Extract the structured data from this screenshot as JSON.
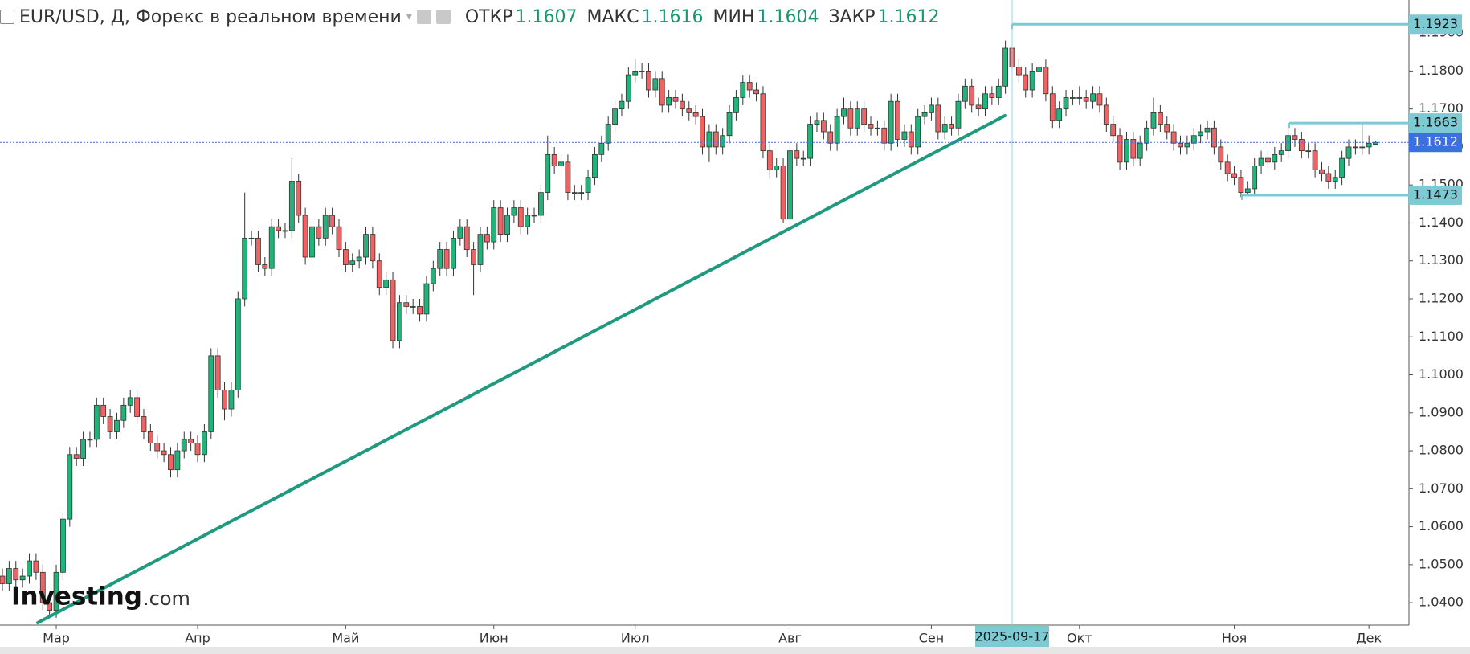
{
  "chart_data": {
    "type": "candlestick",
    "title": "EUR/USD, Д, Форекс в реальном времени",
    "header_values": [
      {
        "label": "ОТКР",
        "value": 1.1607
      },
      {
        "label": "МАКС",
        "value": 1.1616
      },
      {
        "label": "МИН",
        "value": 1.1604
      },
      {
        "label": "ЗАКР",
        "value": 1.1612
      }
    ],
    "logo": "Investing",
    "logo_suffix": ".com",
    "up_color": "#22b37a",
    "down_color": "#ee6363",
    "level_color": "#7ccbd4",
    "last_price_color": "#3c6fe0",
    "ylim": [
      1.0341,
      1.1987
    ],
    "yticks": [
      {
        "value": 1.04,
        "label": "1.0400"
      },
      {
        "value": 1.05,
        "label": "1.0500"
      },
      {
        "value": 1.06,
        "label": "1.0600"
      },
      {
        "value": 1.07,
        "label": "1.0700"
      },
      {
        "value": 1.08,
        "label": "1.0800"
      },
      {
        "value": 1.09,
        "label": "1.0900"
      },
      {
        "value": 1.1,
        "label": "1.1000"
      },
      {
        "value": 1.11,
        "label": "1.1100"
      },
      {
        "value": 1.12,
        "label": "1.1200"
      },
      {
        "value": 1.13,
        "label": "1.1300"
      },
      {
        "value": 1.14,
        "label": "1.1400"
      },
      {
        "value": 1.15,
        "label": "1.1500"
      },
      {
        "value": 1.16,
        "label": "1.1600"
      },
      {
        "value": 1.17,
        "label": "1.1700"
      },
      {
        "value": 1.18,
        "label": "1.1800"
      },
      {
        "value": 1.19,
        "label": "1.1900"
      }
    ],
    "price_levels": [
      1.1923,
      1.1663,
      1.1473
    ],
    "last_price": 1.1612,
    "categories": [
      null,
      null,
      null,
      null,
      null,
      null,
      null,
      null,
      "Мар",
      null,
      null,
      null,
      null,
      null,
      null,
      null,
      null,
      null,
      null,
      null,
      null,
      null,
      null,
      null,
      null,
      null,
      null,
      null,
      null,
      "Апр",
      null,
      null,
      null,
      null,
      null,
      null,
      null,
      null,
      null,
      null,
      null,
      null,
      null,
      null,
      null,
      null,
      null,
      null,
      null,
      null,
      null,
      "Май",
      null,
      null,
      null,
      null,
      null,
      null,
      null,
      null,
      null,
      null,
      null,
      null,
      null,
      null,
      null,
      null,
      null,
      null,
      null,
      null,
      null,
      "Июн",
      null,
      null,
      null,
      null,
      null,
      null,
      null,
      null,
      null,
      null,
      null,
      null,
      null,
      null,
      null,
      null,
      null,
      null,
      null,
      null,
      "Июл",
      null,
      null,
      null,
      null,
      null,
      null,
      null,
      null,
      null,
      null,
      null,
      null,
      null,
      null,
      null,
      null,
      null,
      null,
      null,
      null,
      null,
      null,
      "Авг",
      null,
      null,
      null,
      null,
      null,
      null,
      null,
      null,
      null,
      null,
      null,
      null,
      null,
      null,
      null,
      null,
      null,
      null,
      null,
      null,
      "Сен",
      null,
      null,
      null,
      null,
      null,
      null,
      null,
      null,
      null,
      null,
      null,
      "2025-09-17",
      null,
      null,
      null,
      null,
      null,
      null,
      null,
      null,
      null,
      "Окт",
      null,
      null,
      null,
      null,
      null,
      null,
      null,
      null,
      null,
      null,
      null,
      null,
      null,
      null,
      null,
      null,
      null,
      null,
      null,
      null,
      null,
      null,
      "Ноя",
      null,
      null,
      null,
      null,
      null,
      null,
      null,
      null,
      null,
      null,
      null,
      null,
      null,
      null,
      null,
      null,
      null,
      null,
      null,
      "Дек",
      null
    ],
    "candles": [
      [
        1.047,
        1.049,
        1.043,
        1.045
      ],
      [
        1.045,
        1.051,
        1.043,
        1.049
      ],
      [
        1.049,
        1.051,
        1.044,
        1.046
      ],
      [
        1.046,
        1.049,
        1.044,
        1.047
      ],
      [
        1.047,
        1.053,
        1.045,
        1.051
      ],
      [
        1.051,
        1.053,
        1.046,
        1.048
      ],
      [
        1.048,
        1.05,
        1.038,
        1.04
      ],
      [
        1.04,
        1.042,
        1.036,
        1.038
      ],
      [
        1.038,
        1.05,
        1.036,
        1.048
      ],
      [
        1.048,
        1.064,
        1.046,
        1.062
      ],
      [
        1.062,
        1.081,
        1.06,
        1.079
      ],
      [
        1.079,
        1.081,
        1.076,
        1.078
      ],
      [
        1.078,
        1.085,
        1.076,
        1.083
      ],
      [
        1.083,
        1.085,
        1.081,
        1.083
      ],
      [
        1.083,
        1.094,
        1.081,
        1.092
      ],
      [
        1.092,
        1.094,
        1.087,
        1.089
      ],
      [
        1.089,
        1.091,
        1.083,
        1.085
      ],
      [
        1.085,
        1.09,
        1.083,
        1.088
      ],
      [
        1.088,
        1.094,
        1.086,
        1.092
      ],
      [
        1.092,
        1.096,
        1.09,
        1.094
      ],
      [
        1.094,
        1.096,
        1.087,
        1.089
      ],
      [
        1.089,
        1.091,
        1.083,
        1.085
      ],
      [
        1.085,
        1.087,
        1.08,
        1.082
      ],
      [
        1.082,
        1.084,
        1.078,
        1.08
      ],
      [
        1.08,
        1.082,
        1.077,
        1.079
      ],
      [
        1.079,
        1.081,
        1.073,
        1.075
      ],
      [
        1.075,
        1.082,
        1.073,
        1.08
      ],
      [
        1.08,
        1.085,
        1.078,
        1.083
      ],
      [
        1.083,
        1.085,
        1.08,
        1.082
      ],
      [
        1.082,
        1.084,
        1.077,
        1.079
      ],
      [
        1.079,
        1.087,
        1.077,
        1.085
      ],
      [
        1.085,
        1.107,
        1.083,
        1.105
      ],
      [
        1.105,
        1.107,
        1.094,
        1.096
      ],
      [
        1.096,
        1.098,
        1.088,
        1.091
      ],
      [
        1.091,
        1.098,
        1.089,
        1.096
      ],
      [
        1.096,
        1.122,
        1.094,
        1.12
      ],
      [
        1.12,
        1.148,
        1.118,
        1.136
      ],
      [
        1.136,
        1.138,
        1.134,
        1.136
      ],
      [
        1.136,
        1.138,
        1.127,
        1.129
      ],
      [
        1.129,
        1.131,
        1.126,
        1.128
      ],
      [
        1.128,
        1.141,
        1.126,
        1.139
      ],
      [
        1.139,
        1.141,
        1.136,
        1.138
      ],
      [
        1.138,
        1.14,
        1.136,
        1.138
      ],
      [
        1.138,
        1.157,
        1.136,
        1.151
      ],
      [
        1.151,
        1.153,
        1.14,
        1.142
      ],
      [
        1.142,
        1.144,
        1.129,
        1.131
      ],
      [
        1.131,
        1.141,
        1.129,
        1.139
      ],
      [
        1.139,
        1.141,
        1.134,
        1.136
      ],
      [
        1.136,
        1.144,
        1.134,
        1.142
      ],
      [
        1.142,
        1.144,
        1.137,
        1.139
      ],
      [
        1.139,
        1.141,
        1.131,
        1.133
      ],
      [
        1.133,
        1.135,
        1.127,
        1.129
      ],
      [
        1.129,
        1.132,
        1.127,
        1.13
      ],
      [
        1.13,
        1.133,
        1.128,
        1.131
      ],
      [
        1.131,
        1.139,
        1.129,
        1.137
      ],
      [
        1.137,
        1.139,
        1.128,
        1.13
      ],
      [
        1.13,
        1.132,
        1.121,
        1.123
      ],
      [
        1.123,
        1.127,
        1.121,
        1.125
      ],
      [
        1.125,
        1.127,
        1.107,
        1.109
      ],
      [
        1.109,
        1.121,
        1.107,
        1.119
      ],
      [
        1.119,
        1.121,
        1.116,
        1.118
      ],
      [
        1.118,
        1.12,
        1.116,
        1.118
      ],
      [
        1.118,
        1.12,
        1.114,
        1.116
      ],
      [
        1.116,
        1.126,
        1.114,
        1.124
      ],
      [
        1.124,
        1.13,
        1.122,
        1.128
      ],
      [
        1.128,
        1.135,
        1.126,
        1.133
      ],
      [
        1.133,
        1.135,
        1.126,
        1.128
      ],
      [
        1.128,
        1.138,
        1.126,
        1.136
      ],
      [
        1.136,
        1.141,
        1.134,
        1.139
      ],
      [
        1.139,
        1.141,
        1.131,
        1.133
      ],
      [
        1.133,
        1.135,
        1.121,
        1.129
      ],
      [
        1.129,
        1.139,
        1.127,
        1.137
      ],
      [
        1.137,
        1.139,
        1.133,
        1.135
      ],
      [
        1.135,
        1.146,
        1.133,
        1.144
      ],
      [
        1.144,
        1.146,
        1.135,
        1.137
      ],
      [
        1.137,
        1.144,
        1.135,
        1.142
      ],
      [
        1.142,
        1.146,
        1.14,
        1.144
      ],
      [
        1.144,
        1.146,
        1.137,
        1.139
      ],
      [
        1.139,
        1.144,
        1.137,
        1.142
      ],
      [
        1.142,
        1.144,
        1.14,
        1.142
      ],
      [
        1.142,
        1.15,
        1.14,
        1.148
      ],
      [
        1.148,
        1.163,
        1.146,
        1.158
      ],
      [
        1.158,
        1.16,
        1.153,
        1.155
      ],
      [
        1.155,
        1.158,
        1.153,
        1.156
      ],
      [
        1.156,
        1.158,
        1.146,
        1.148
      ],
      [
        1.148,
        1.15,
        1.146,
        1.148
      ],
      [
        1.148,
        1.15,
        1.146,
        1.148
      ],
      [
        1.148,
        1.154,
        1.146,
        1.152
      ],
      [
        1.152,
        1.16,
        1.15,
        1.158
      ],
      [
        1.158,
        1.163,
        1.156,
        1.161
      ],
      [
        1.161,
        1.168,
        1.159,
        1.166
      ],
      [
        1.166,
        1.172,
        1.164,
        1.17
      ],
      [
        1.17,
        1.174,
        1.168,
        1.172
      ],
      [
        1.172,
        1.181,
        1.17,
        1.179
      ],
      [
        1.179,
        1.183,
        1.177,
        1.18
      ],
      [
        1.18,
        1.182,
        1.178,
        1.18
      ],
      [
        1.18,
        1.182,
        1.173,
        1.175
      ],
      [
        1.175,
        1.18,
        1.173,
        1.178
      ],
      [
        1.178,
        1.18,
        1.169,
        1.171
      ],
      [
        1.171,
        1.175,
        1.169,
        1.173
      ],
      [
        1.173,
        1.175,
        1.17,
        1.172
      ],
      [
        1.172,
        1.174,
        1.168,
        1.17
      ],
      [
        1.17,
        1.172,
        1.167,
        1.169
      ],
      [
        1.169,
        1.171,
        1.166,
        1.168
      ],
      [
        1.168,
        1.17,
        1.158,
        1.16
      ],
      [
        1.16,
        1.166,
        1.156,
        1.164
      ],
      [
        1.164,
        1.166,
        1.158,
        1.16
      ],
      [
        1.16,
        1.165,
        1.158,
        1.163
      ],
      [
        1.163,
        1.171,
        1.161,
        1.169
      ],
      [
        1.169,
        1.175,
        1.167,
        1.173
      ],
      [
        1.173,
        1.179,
        1.171,
        1.177
      ],
      [
        1.177,
        1.179,
        1.173,
        1.175
      ],
      [
        1.175,
        1.177,
        1.172,
        1.174
      ],
      [
        1.174,
        1.176,
        1.157,
        1.159
      ],
      [
        1.159,
        1.161,
        1.152,
        1.154
      ],
      [
        1.154,
        1.157,
        1.152,
        1.155
      ],
      [
        1.155,
        1.157,
        1.14,
        1.141
      ],
      [
        1.141,
        1.161,
        1.139,
        1.159
      ],
      [
        1.159,
        1.161,
        1.155,
        1.157
      ],
      [
        1.157,
        1.159,
        1.155,
        1.157
      ],
      [
        1.157,
        1.168,
        1.155,
        1.166
      ],
      [
        1.166,
        1.169,
        1.164,
        1.167
      ],
      [
        1.167,
        1.169,
        1.162,
        1.164
      ],
      [
        1.164,
        1.166,
        1.159,
        1.161
      ],
      [
        1.161,
        1.17,
        1.159,
        1.168
      ],
      [
        1.168,
        1.173,
        1.166,
        1.17
      ],
      [
        1.17,
        1.172,
        1.163,
        1.165
      ],
      [
        1.165,
        1.172,
        1.163,
        1.17
      ],
      [
        1.17,
        1.172,
        1.164,
        1.166
      ],
      [
        1.166,
        1.168,
        1.163,
        1.165
      ],
      [
        1.165,
        1.167,
        1.163,
        1.165
      ],
      [
        1.165,
        1.167,
        1.159,
        1.161
      ],
      [
        1.161,
        1.174,
        1.159,
        1.172
      ],
      [
        1.172,
        1.174,
        1.16,
        1.162
      ],
      [
        1.162,
        1.166,
        1.16,
        1.164
      ],
      [
        1.164,
        1.166,
        1.158,
        1.16
      ],
      [
        1.16,
        1.17,
        1.158,
        1.168
      ],
      [
        1.168,
        1.171,
        1.166,
        1.169
      ],
      [
        1.169,
        1.173,
        1.167,
        1.171
      ],
      [
        1.171,
        1.173,
        1.162,
        1.164
      ],
      [
        1.164,
        1.168,
        1.162,
        1.166
      ],
      [
        1.166,
        1.168,
        1.163,
        1.165
      ],
      [
        1.165,
        1.174,
        1.163,
        1.172
      ],
      [
        1.172,
        1.178,
        1.17,
        1.176
      ],
      [
        1.176,
        1.178,
        1.169,
        1.171
      ],
      [
        1.171,
        1.173,
        1.168,
        1.17
      ],
      [
        1.17,
        1.176,
        1.168,
        1.174
      ],
      [
        1.174,
        1.176,
        1.171,
        1.173
      ],
      [
        1.173,
        1.178,
        1.171,
        1.176
      ],
      [
        1.176,
        1.188,
        1.174,
        1.186
      ],
      [
        1.186,
        1.1923,
        1.179,
        1.181
      ],
      [
        1.181,
        1.183,
        1.177,
        1.179
      ],
      [
        1.179,
        1.181,
        1.173,
        1.175
      ],
      [
        1.175,
        1.182,
        1.173,
        1.18
      ],
      [
        1.18,
        1.183,
        1.178,
        1.181
      ],
      [
        1.181,
        1.183,
        1.172,
        1.174
      ],
      [
        1.174,
        1.176,
        1.165,
        1.167
      ],
      [
        1.167,
        1.172,
        1.165,
        1.17
      ],
      [
        1.17,
        1.175,
        1.168,
        1.173
      ],
      [
        1.173,
        1.175,
        1.171,
        1.173
      ],
      [
        1.173,
        1.176,
        1.171,
        1.173
      ],
      [
        1.173,
        1.175,
        1.17,
        1.172
      ],
      [
        1.172,
        1.176,
        1.17,
        1.174
      ],
      [
        1.174,
        1.176,
        1.169,
        1.171
      ],
      [
        1.171,
        1.173,
        1.164,
        1.166
      ],
      [
        1.166,
        1.168,
        1.161,
        1.163
      ],
      [
        1.163,
        1.165,
        1.154,
        1.156
      ],
      [
        1.156,
        1.164,
        1.154,
        1.162
      ],
      [
        1.162,
        1.164,
        1.155,
        1.157
      ],
      [
        1.157,
        1.163,
        1.155,
        1.161
      ],
      [
        1.161,
        1.167,
        1.159,
        1.165
      ],
      [
        1.165,
        1.173,
        1.163,
        1.169
      ],
      [
        1.169,
        1.171,
        1.164,
        1.166
      ],
      [
        1.166,
        1.168,
        1.162,
        1.164
      ],
      [
        1.164,
        1.166,
        1.159,
        1.161
      ],
      [
        1.161,
        1.163,
        1.158,
        1.16
      ],
      [
        1.16,
        1.163,
        1.158,
        1.161
      ],
      [
        1.161,
        1.165,
        1.159,
        1.163
      ],
      [
        1.163,
        1.166,
        1.161,
        1.164
      ],
      [
        1.164,
        1.167,
        1.162,
        1.165
      ],
      [
        1.165,
        1.167,
        1.158,
        1.16
      ],
      [
        1.16,
        1.162,
        1.154,
        1.156
      ],
      [
        1.156,
        1.158,
        1.151,
        1.153
      ],
      [
        1.153,
        1.155,
        1.15,
        1.152
      ],
      [
        1.152,
        1.154,
        1.1468,
        1.148
      ],
      [
        1.148,
        1.151,
        1.147,
        1.149
      ],
      [
        1.149,
        1.157,
        1.147,
        1.155
      ],
      [
        1.155,
        1.159,
        1.153,
        1.157
      ],
      [
        1.157,
        1.159,
        1.154,
        1.156
      ],
      [
        1.156,
        1.16,
        1.154,
        1.158
      ],
      [
        1.158,
        1.161,
        1.156,
        1.159
      ],
      [
        1.159,
        1.1655,
        1.157,
        1.163
      ],
      [
        1.163,
        1.165,
        1.16,
        1.162
      ],
      [
        1.162,
        1.164,
        1.157,
        1.159
      ],
      [
        1.159,
        1.161,
        1.157,
        1.159
      ],
      [
        1.159,
        1.161,
        1.152,
        1.154
      ],
      [
        1.154,
        1.156,
        1.151,
        1.153
      ],
      [
        1.153,
        1.155,
        1.149,
        1.151
      ],
      [
        1.151,
        1.154,
        1.149,
        1.152
      ],
      [
        1.152,
        1.159,
        1.15,
        1.157
      ],
      [
        1.157,
        1.162,
        1.155,
        1.16
      ],
      [
        1.16,
        1.162,
        1.158,
        1.16
      ],
      [
        1.16,
        1.166,
        1.158,
        1.16
      ],
      [
        1.16,
        1.163,
        1.158,
        1.161
      ],
      [
        1.1607,
        1.1616,
        1.1604,
        1.1612
      ]
    ]
  }
}
